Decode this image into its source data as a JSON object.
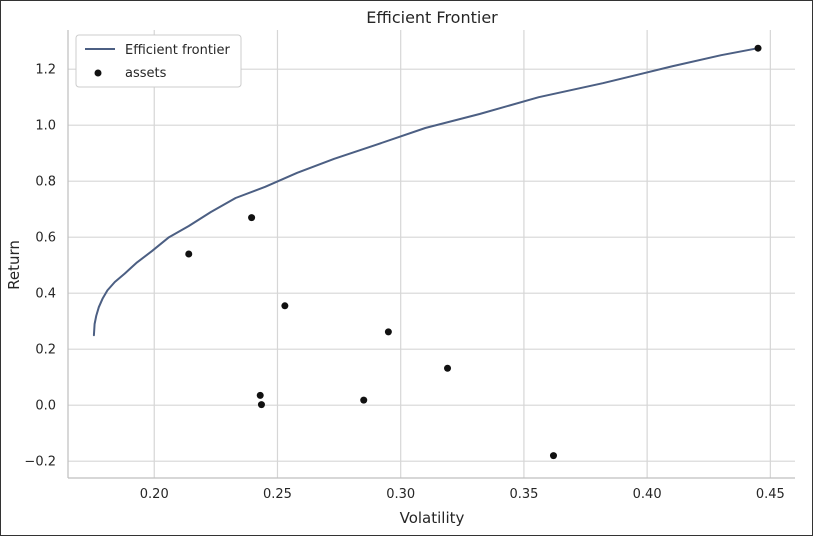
{
  "chart_data": {
    "type": "line+scatter",
    "title": "Efficient Frontier",
    "xlabel": "Volatility",
    "ylabel": "Return",
    "xlim": [
      0.165,
      0.46
    ],
    "ylim": [
      -0.26,
      1.34
    ],
    "xticks": [
      0.2,
      0.25,
      0.3,
      0.35,
      0.4,
      0.45
    ],
    "xtick_labels": [
      "0.20",
      "0.25",
      "0.30",
      "0.35",
      "0.40",
      "0.45"
    ],
    "yticks": [
      -0.2,
      0.0,
      0.2,
      0.4,
      0.6,
      0.8,
      1.0,
      1.2
    ],
    "ytick_labels": [
      "−0.2",
      "0.0",
      "0.2",
      "0.4",
      "0.6",
      "0.8",
      "1.0",
      "1.2"
    ],
    "grid": true,
    "legend_position": "upper-left",
    "series": [
      {
        "name": "Efficient frontier",
        "type": "line",
        "color": "#4c5f83",
        "x": [
          0.1755,
          0.1758,
          0.1765,
          0.1775,
          0.179,
          0.181,
          0.184,
          0.188,
          0.193,
          0.199,
          0.206,
          0.214,
          0.223,
          0.233,
          0.245,
          0.258,
          0.273,
          0.29,
          0.31,
          0.332,
          0.356,
          0.382,
          0.41,
          0.43,
          0.445
        ],
        "y": [
          0.25,
          0.29,
          0.32,
          0.35,
          0.38,
          0.41,
          0.44,
          0.47,
          0.51,
          0.55,
          0.6,
          0.64,
          0.69,
          0.74,
          0.78,
          0.83,
          0.88,
          0.93,
          0.99,
          1.04,
          1.1,
          1.15,
          1.21,
          1.25,
          1.275
        ]
      },
      {
        "name": "assets",
        "type": "scatter",
        "color": "#111111",
        "x": [
          0.214,
          0.2395,
          0.253,
          0.243,
          0.2435,
          0.285,
          0.295,
          0.319,
          0.362,
          0.445
        ],
        "y": [
          0.54,
          0.67,
          0.355,
          0.035,
          0.002,
          0.018,
          0.262,
          0.132,
          -0.18,
          1.275
        ]
      }
    ]
  }
}
